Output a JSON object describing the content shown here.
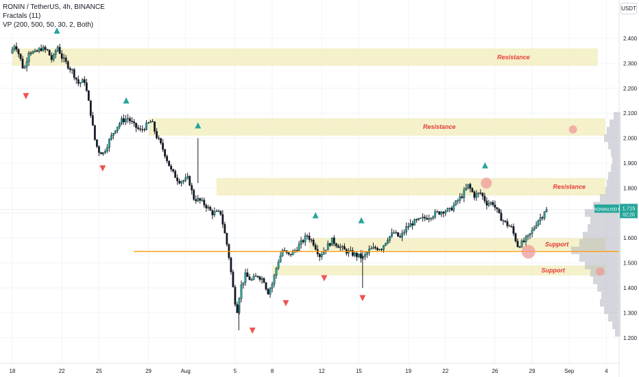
{
  "header": {
    "title": "RONIN / TetherUS, 4h, BINANCE",
    "indicator_1": "Fractals (11)",
    "indicator_2": "VP (200, 500, 50, 30, 2, Both)",
    "currency_button": "USDT"
  },
  "price_tag": {
    "symbol": "RONINUSDT",
    "price": "1.715",
    "countdown": "02:20"
  },
  "colors": {
    "up": "#26a69a",
    "down": "#ef5350",
    "wick": "#131722",
    "zone": "#f2eec2",
    "label": "#e53935",
    "orange": "#ff9800",
    "profile": "#b2b5be",
    "circle": "#ef9a9a",
    "tag_bg": "#26a69a"
  },
  "chart_data": {
    "type": "candlestick",
    "x_ticks": [
      {
        "label": "18",
        "d": 0
      },
      {
        "label": "22",
        "d": 4
      },
      {
        "label": "25",
        "d": 7
      },
      {
        "label": "29",
        "d": 11
      },
      {
        "label": "Aug",
        "d": 14
      },
      {
        "label": "5",
        "d": 18
      },
      {
        "label": "8",
        "d": 21
      },
      {
        "label": "12",
        "d": 25
      },
      {
        "label": "15",
        "d": 28
      },
      {
        "label": "19",
        "d": 32
      },
      {
        "label": "22",
        "d": 35
      },
      {
        "label": "26",
        "d": 39
      },
      {
        "label": "29",
        "d": 42
      },
      {
        "label": "Sep",
        "d": 45
      },
      {
        "label": "4",
        "d": 48
      }
    ],
    "y_ticks": [
      "2.400",
      "2.300",
      "2.200",
      "2.100",
      "2.000",
      "1.900",
      "1.800",
      "1.700",
      "1.600",
      "1.500",
      "1.400",
      "1.300",
      "1.200"
    ],
    "y_values": [
      2.4,
      2.3,
      2.2,
      2.1,
      2.0,
      1.9,
      1.8,
      1.7,
      1.6,
      1.5,
      1.4,
      1.3,
      1.2
    ],
    "ylim": [
      1.18,
      2.46
    ],
    "last_price": 1.715,
    "price_path": [
      [
        0,
        2.34
      ],
      [
        0.4,
        2.38
      ],
      [
        0.8,
        2.32
      ],
      [
        1.1,
        2.27
      ],
      [
        1.5,
        2.35
      ],
      [
        2,
        2.34
      ],
      [
        2.5,
        2.36
      ],
      [
        3,
        2.35
      ],
      [
        3.4,
        2.31
      ],
      [
        3.8,
        2.37
      ],
      [
        4.2,
        2.32
      ],
      [
        5,
        2.27
      ],
      [
        5.5,
        2.22
      ],
      [
        6,
        2.23
      ],
      [
        6.5,
        2.1
      ],
      [
        6.8,
        2.0
      ],
      [
        7.1,
        1.95
      ],
      [
        7.5,
        1.94
      ],
      [
        8,
        1.99
      ],
      [
        8.5,
        2.04
      ],
      [
        9,
        2.07
      ],
      [
        9.5,
        2.08
      ],
      [
        10,
        2.05
      ],
      [
        10.5,
        2.03
      ],
      [
        11,
        2.05
      ],
      [
        11.4,
        2.07
      ],
      [
        11.8,
        2.01
      ],
      [
        12.4,
        1.95
      ],
      [
        13,
        1.87
      ],
      [
        13.6,
        1.83
      ],
      [
        14.1,
        1.83
      ],
      [
        14.4,
        1.84
      ],
      [
        14.8,
        1.76
      ],
      [
        15.3,
        1.75
      ],
      [
        15.8,
        1.73
      ],
      [
        16.3,
        1.7
      ],
      [
        17,
        1.7
      ],
      [
        17.6,
        1.55
      ],
      [
        18,
        1.4
      ],
      [
        18.3,
        1.3
      ],
      [
        18.6,
        1.4
      ],
      [
        19,
        1.45
      ],
      [
        19.5,
        1.43
      ],
      [
        20,
        1.45
      ],
      [
        20.5,
        1.43
      ],
      [
        20.8,
        1.38
      ],
      [
        21.2,
        1.42
      ],
      [
        21.6,
        1.5
      ],
      [
        22,
        1.55
      ],
      [
        22.5,
        1.53
      ],
      [
        23,
        1.55
      ],
      [
        23.5,
        1.58
      ],
      [
        24,
        1.61
      ],
      [
        24.5,
        1.58
      ],
      [
        25,
        1.53
      ],
      [
        25.5,
        1.56
      ],
      [
        26,
        1.59
      ],
      [
        26.5,
        1.57
      ],
      [
        27,
        1.55
      ],
      [
        27.5,
        1.54
      ],
      [
        28,
        1.53
      ],
      [
        28.5,
        1.52
      ],
      [
        29,
        1.55
      ],
      [
        29.5,
        1.56
      ],
      [
        30,
        1.56
      ],
      [
        30.5,
        1.6
      ],
      [
        31,
        1.62
      ],
      [
        31.5,
        1.6
      ],
      [
        32,
        1.64
      ],
      [
        32.5,
        1.66
      ],
      [
        33,
        1.67
      ],
      [
        33.5,
        1.68
      ],
      [
        34,
        1.69
      ],
      [
        34.5,
        1.7
      ],
      [
        35,
        1.71
      ],
      [
        35.5,
        1.71
      ],
      [
        36,
        1.74
      ],
      [
        36.5,
        1.77
      ],
      [
        37,
        1.81
      ],
      [
        37.5,
        1.77
      ],
      [
        38,
        1.78
      ],
      [
        38.5,
        1.74
      ],
      [
        39,
        1.74
      ],
      [
        39.5,
        1.69
      ],
      [
        40,
        1.66
      ],
      [
        40.5,
        1.64
      ],
      [
        41,
        1.57
      ],
      [
        41.4,
        1.58
      ],
      [
        41.8,
        1.6
      ],
      [
        42.2,
        1.63
      ],
      [
        42.6,
        1.67
      ],
      [
        43,
        1.69
      ],
      [
        43.2,
        1.715
      ]
    ],
    "zones": [
      {
        "low": 2.29,
        "high": 2.36,
        "x0": 0,
        "x1": 47.3,
        "label": "Resistance",
        "label_d": 40.5
      },
      {
        "low": 2.01,
        "high": 2.08,
        "x0": 11,
        "x1": 48.5,
        "label": "Resistance",
        "label_d": 34.5
      },
      {
        "low": 1.77,
        "high": 1.84,
        "x0": 16.5,
        "x1": 48.5,
        "label": "Resistance",
        "label_d": 45
      },
      {
        "low": 1.55,
        "high": 1.6,
        "x0": 24,
        "x1": 48.5,
        "label": "Support",
        "label_d": 44
      },
      {
        "low": 1.45,
        "high": 1.49,
        "x0": 21,
        "x1": 48.5,
        "label": "Support",
        "label_d": 43.7
      }
    ],
    "orange_line": 1.546,
    "circles": [
      {
        "d": 45.3,
        "v": 2.035,
        "r": 6
      },
      {
        "d": 38.3,
        "v": 1.82,
        "r": 8
      },
      {
        "d": 41.7,
        "v": 1.545,
        "r": 10
      },
      {
        "d": 47.5,
        "v": 1.465,
        "r": 6
      }
    ],
    "fractals_up": [
      {
        "d": 3.6,
        "v": 2.43
      },
      {
        "d": 9.2,
        "v": 2.15
      },
      {
        "d": 15,
        "v": 2.05
      },
      {
        "d": 24.5,
        "v": 1.69
      },
      {
        "d": 28.2,
        "v": 1.67
      },
      {
        "d": 38.2,
        "v": 1.89
      }
    ],
    "fractals_down": [
      {
        "d": 1.1,
        "v": 2.17
      },
      {
        "d": 7.3,
        "v": 1.88
      },
      {
        "d": 19.4,
        "v": 1.23
      },
      {
        "d": 22.1,
        "v": 1.34
      },
      {
        "d": 25.2,
        "v": 1.44
      },
      {
        "d": 28.3,
        "v": 1.36
      }
    ]
  }
}
